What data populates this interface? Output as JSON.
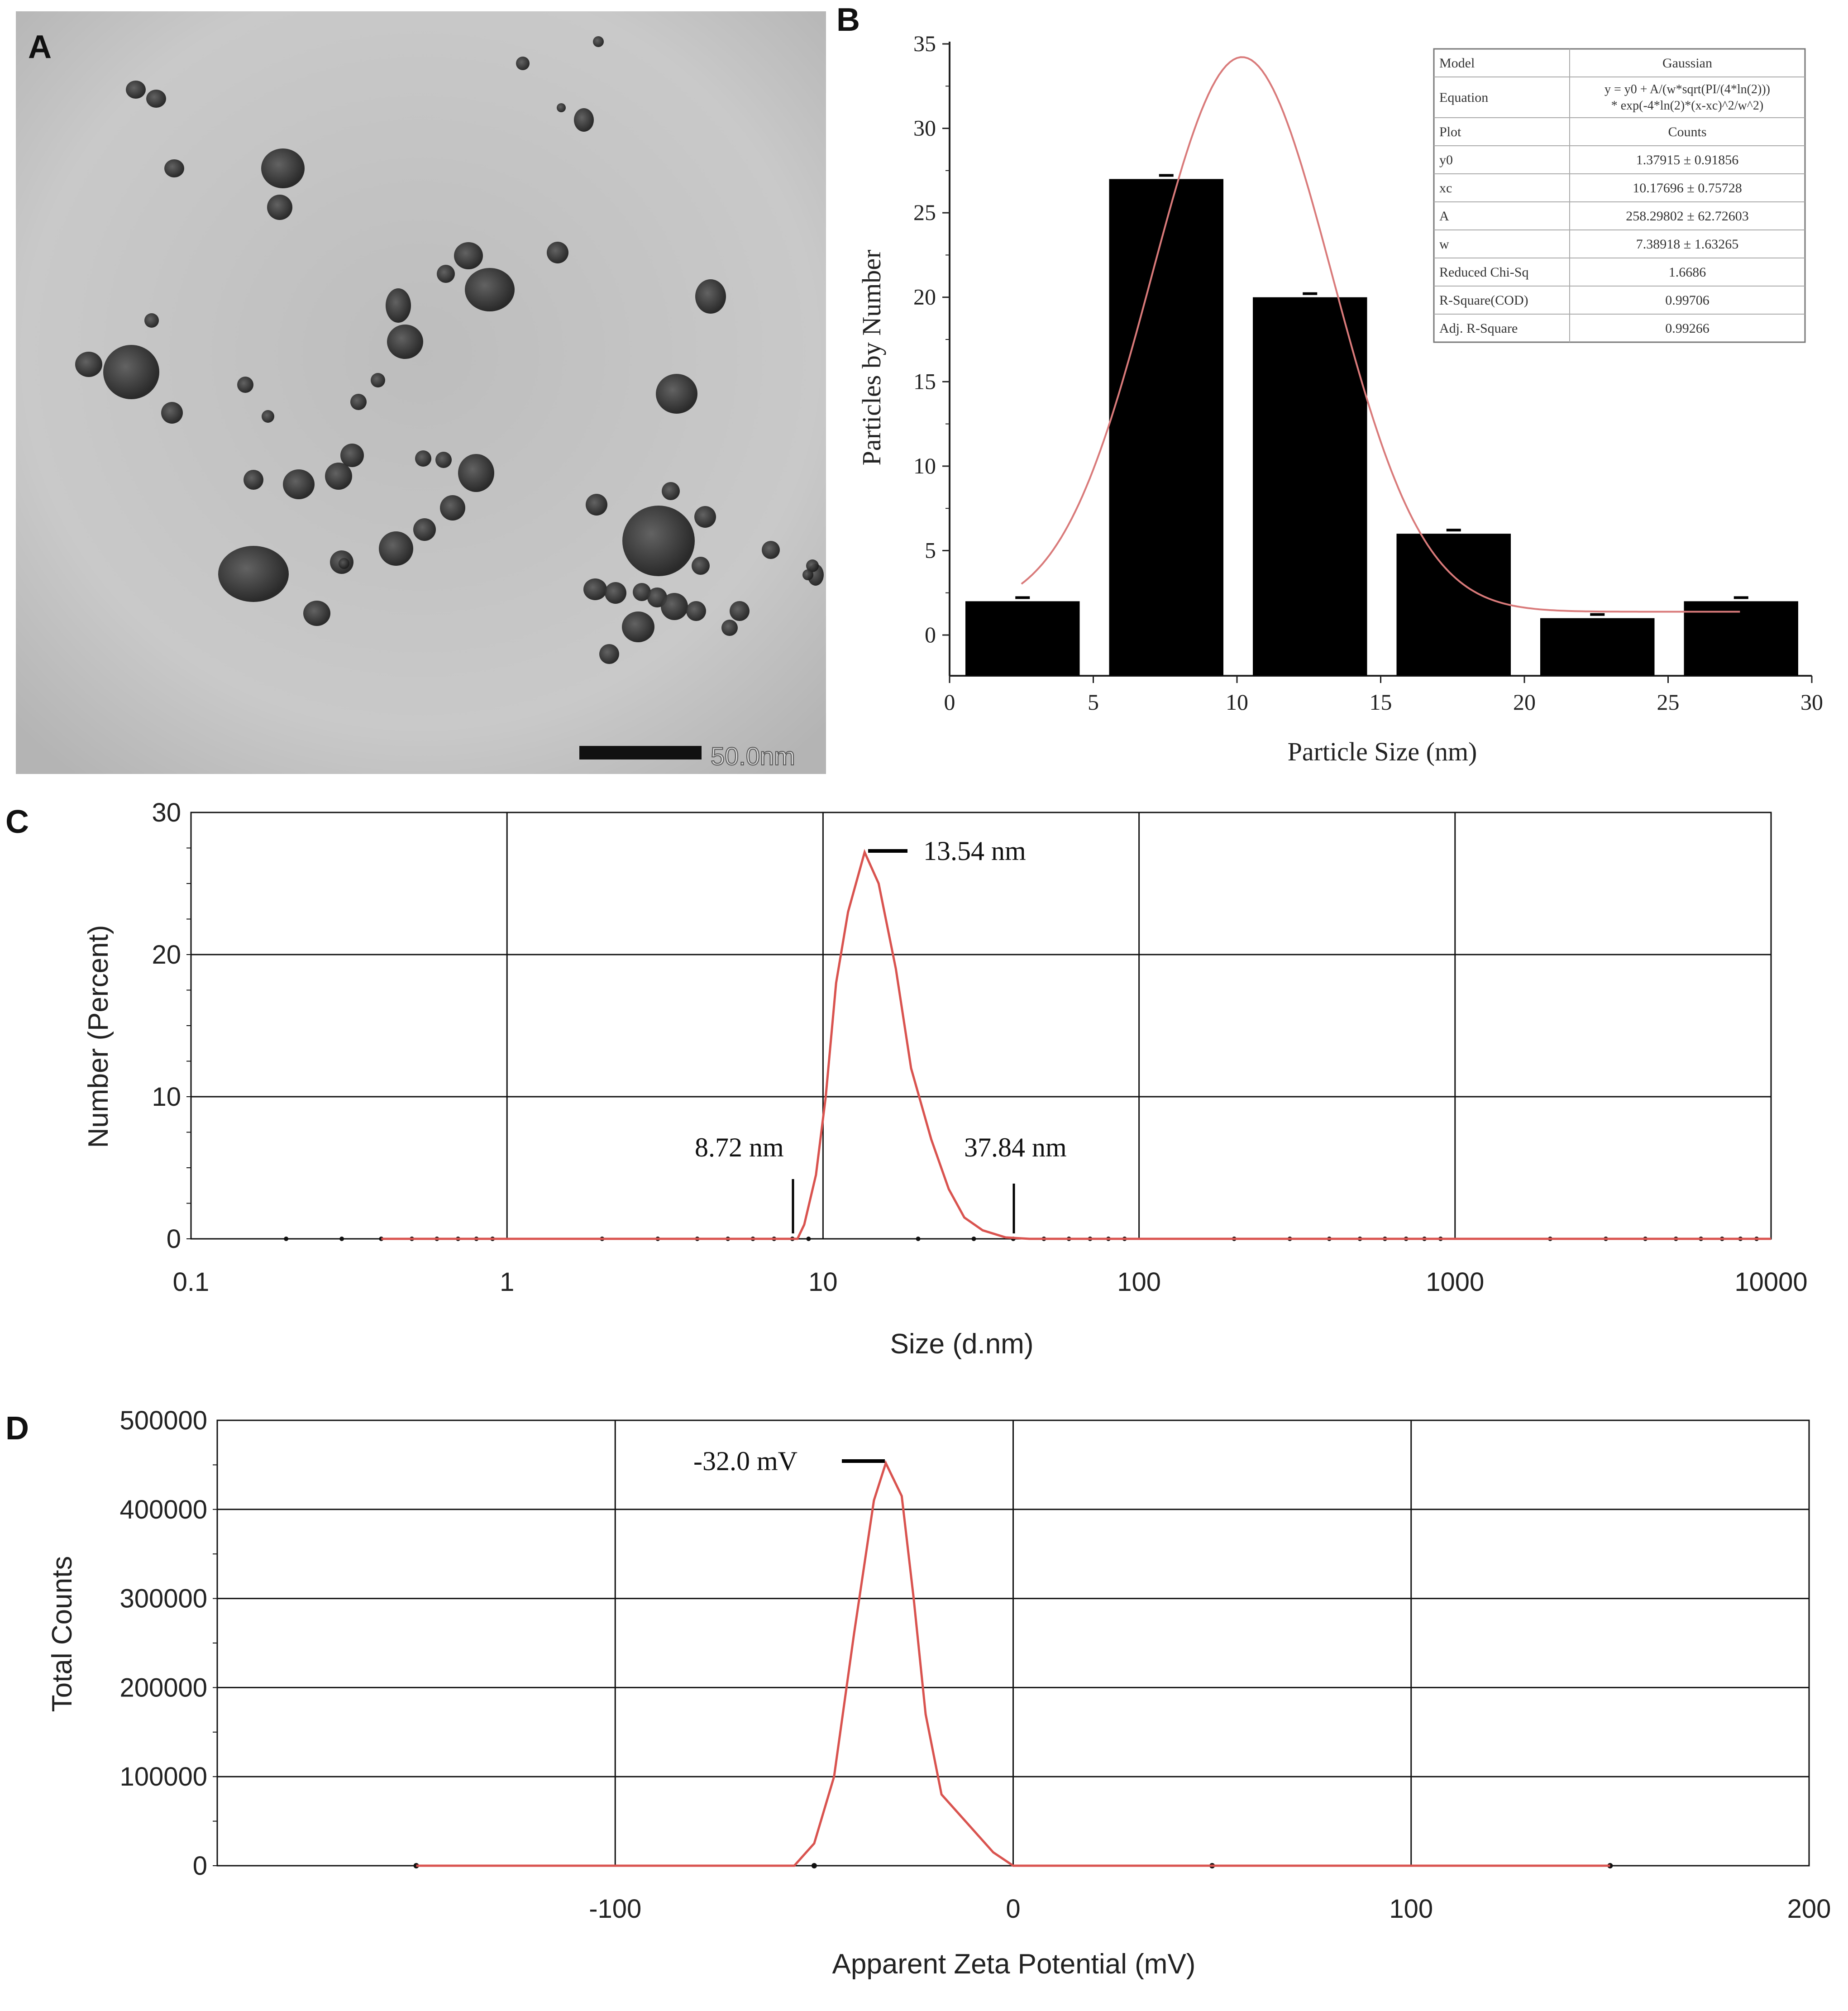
{
  "panels": {
    "A": {
      "label": "A",
      "scale_bar_text": "50.0nm"
    },
    "B": {
      "label": "B",
      "fit_table": [
        {
          "key": "Model",
          "value": "Gaussian"
        },
        {
          "key": "Equation",
          "value": "y = y0 + A/(w*sqrt(PI/(4*ln(2))) * exp(-4*ln(2)*(x-xc)^2/w^2)"
        },
        {
          "key": "Plot",
          "value": "Counts"
        },
        {
          "key": "y0",
          "value": "1.37915 ± 0.91856"
        },
        {
          "key": "xc",
          "value": "10.17696 ± 0.75728"
        },
        {
          "key": "A",
          "value": "258.29802 ± 62.72603"
        },
        {
          "key": "w",
          "value": "7.38918 ± 1.63265"
        },
        {
          "key": "Reduced Chi-Sq",
          "value": "1.6686"
        },
        {
          "key": "R-Square(COD)",
          "value": "0.99706"
        },
        {
          "key": "Adj. R-Square",
          "value": "0.99266"
        }
      ]
    },
    "C": {
      "label": "C",
      "annotations": {
        "peak": "13.54 nm",
        "low": "8.72 nm",
        "high": "37.84 nm"
      }
    },
    "D": {
      "label": "D",
      "annotations": {
        "peak": "-32.0 mV"
      }
    }
  },
  "colors": {
    "curve": "#d9534f",
    "bars": "#000000",
    "tem_background": "#c9c9c9"
  },
  "chart_data": [
    {
      "type": "bar",
      "panel": "B",
      "xlabel": "Particle Size (nm)",
      "ylabel": "Particles by Number",
      "xlim": [
        0,
        30
      ],
      "ylim": [
        0,
        35
      ],
      "xticks": [
        0,
        5,
        10,
        15,
        20,
        25,
        30
      ],
      "yticks": [
        0,
        5,
        10,
        15,
        20,
        25,
        30,
        35
      ],
      "categories": [
        "0-5",
        "5-10",
        "10-15",
        "15-20",
        "20-25",
        "25-30"
      ],
      "bins": [
        [
          0,
          5
        ],
        [
          5,
          10
        ],
        [
          10,
          15
        ],
        [
          15,
          20
        ],
        [
          20,
          25
        ],
        [
          25,
          30
        ]
      ],
      "values": [
        2,
        27,
        20,
        6,
        1,
        2
      ],
      "fit": {
        "model": "Gaussian",
        "y0": 1.37915,
        "xc": 10.17696,
        "A": 258.29802,
        "w": 7.38918,
        "x_range": [
          2.5,
          27.5
        ]
      }
    },
    {
      "type": "line",
      "panel": "C",
      "xlabel": "Size (d.nm)",
      "ylabel": "Number (Percent)",
      "x_scale": "log",
      "xlim": [
        0.1,
        10000
      ],
      "ylim": [
        0,
        30
      ],
      "xticks": [
        0.1,
        1,
        10,
        100,
        1000,
        10000
      ],
      "yticks": [
        0,
        10,
        20,
        30
      ],
      "series": [
        {
          "x": [
            0.4,
            1,
            5,
            8.3,
            8.72,
            9.5,
            10.2,
            11,
            12,
            13.54,
            15,
            17,
            19,
            22,
            25,
            28,
            32,
            37.84,
            45,
            100,
            1000,
            10000
          ],
          "y": [
            0,
            0,
            0,
            0,
            1,
            4.5,
            10,
            18,
            23,
            27.2,
            25,
            19,
            12,
            7,
            3.5,
            1.5,
            0.6,
            0.1,
            0,
            0,
            0,
            0
          ]
        }
      ]
    },
    {
      "type": "line",
      "panel": "D",
      "xlabel": "Apparent Zeta Potential (mV)",
      "ylabel": "Total Counts",
      "xlim": [
        -200,
        200
      ],
      "ylim": [
        0,
        500000
      ],
      "xticks": [
        -100,
        0,
        100,
        200
      ],
      "yticks": [
        0,
        100000,
        200000,
        300000,
        400000,
        500000
      ],
      "series": [
        {
          "x": [
            -150,
            -55,
            -50,
            -45,
            -40,
            -35,
            -32,
            -28,
            -25,
            -22,
            -18,
            -10,
            -5,
            0,
            150
          ],
          "y": [
            0,
            0,
            25000,
            100000,
            260000,
            410000,
            452000,
            415000,
            300000,
            170000,
            80000,
            40000,
            15000,
            0,
            0
          ]
        }
      ]
    }
  ]
}
